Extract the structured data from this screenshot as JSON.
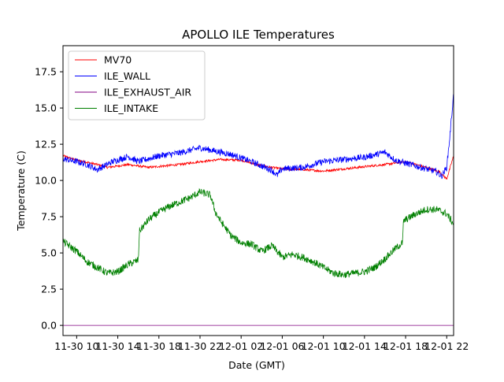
{
  "chart_data": {
    "type": "line",
    "title": "APOLLO ILE Temperatures",
    "xlabel": "Date (GMT)",
    "ylabel": "Temperature (C)",
    "x_unit": "hours since 2021-11-30 10:00 GMT",
    "xlim": [
      -1.33,
      36.67
    ],
    "ylim": [
      -0.7,
      19.3
    ],
    "xticks": [
      {
        "value": 0,
        "label": "11-30 10"
      },
      {
        "value": 4,
        "label": "11-30 14"
      },
      {
        "value": 8,
        "label": "11-30 18"
      },
      {
        "value": 12,
        "label": "11-30 22"
      },
      {
        "value": 16,
        "label": "12-01 02"
      },
      {
        "value": 20,
        "label": "12-01 06"
      },
      {
        "value": 24,
        "label": "12-01 10"
      },
      {
        "value": 28,
        "label": "12-01 14"
      },
      {
        "value": 32,
        "label": "12-01 18"
      },
      {
        "value": 36,
        "label": "12-01 22"
      }
    ],
    "yticks": [
      {
        "value": 0,
        "label": "0.0"
      },
      {
        "value": 2.5,
        "label": "2.5"
      },
      {
        "value": 5,
        "label": "5.0"
      },
      {
        "value": 7.5,
        "label": "7.5"
      },
      {
        "value": 10,
        "label": "10.0"
      },
      {
        "value": 12.5,
        "label": "12.5"
      },
      {
        "value": 15,
        "label": "15.0"
      },
      {
        "value": 17.5,
        "label": "17.5"
      }
    ],
    "legend_position": "top-left",
    "series": [
      {
        "name": "MV70",
        "color": "#ff0000",
        "noise": 0.08,
        "points": [
          [
            -1.33,
            11.7
          ],
          [
            0,
            11.4
          ],
          [
            2,
            11.1
          ],
          [
            3,
            10.9
          ],
          [
            5,
            11.1
          ],
          [
            7,
            10.9
          ],
          [
            10,
            11.1
          ],
          [
            12,
            11.3
          ],
          [
            14,
            11.45
          ],
          [
            16,
            11.4
          ],
          [
            18,
            11.0
          ],
          [
            20,
            10.8
          ],
          [
            22,
            10.75
          ],
          [
            24,
            10.65
          ],
          [
            26,
            10.8
          ],
          [
            28,
            10.95
          ],
          [
            30,
            11.1
          ],
          [
            32,
            11.3
          ],
          [
            34,
            10.9
          ],
          [
            35.3,
            10.6
          ],
          [
            36,
            10.1
          ],
          [
            36.67,
            11.7
          ]
        ]
      },
      {
        "name": "ILE_WALL",
        "color": "#0000ff",
        "noise": 0.22,
        "points": [
          [
            -1.33,
            11.5
          ],
          [
            0,
            11.3
          ],
          [
            1,
            11.1
          ],
          [
            2,
            10.75
          ],
          [
            3.5,
            11.3
          ],
          [
            5,
            11.65
          ],
          [
            6,
            11.3
          ],
          [
            8,
            11.7
          ],
          [
            10,
            11.9
          ],
          [
            12,
            12.25
          ],
          [
            13,
            12.1
          ],
          [
            15,
            11.8
          ],
          [
            17,
            11.3
          ],
          [
            19,
            10.7
          ],
          [
            19.5,
            10.35
          ],
          [
            20,
            10.8
          ],
          [
            22,
            10.9
          ],
          [
            24,
            11.3
          ],
          [
            26,
            11.45
          ],
          [
            28,
            11.6
          ],
          [
            30,
            11.95
          ],
          [
            31,
            11.4
          ],
          [
            33,
            11.0
          ],
          [
            35,
            10.6
          ],
          [
            35.5,
            10.3
          ],
          [
            36,
            10.9
          ],
          [
            36.3,
            13.0
          ],
          [
            36.67,
            16.0
          ]
        ]
      },
      {
        "name": "ILE_EXHAUST_AIR",
        "color": "#800080",
        "noise": 0.0,
        "points": [
          [
            -1.33,
            0.0
          ],
          [
            36.67,
            0.0
          ]
        ]
      },
      {
        "name": "ILE_INTAKE",
        "color": "#008000",
        "noise": 0.25,
        "points": [
          [
            -1.33,
            5.8
          ],
          [
            0,
            5.1
          ],
          [
            1,
            4.4
          ],
          [
            2,
            4.0
          ],
          [
            3,
            3.6
          ],
          [
            4,
            3.7
          ],
          [
            5,
            4.2
          ],
          [
            6,
            4.5
          ],
          [
            6.1,
            6.5
          ],
          [
            7,
            7.3
          ],
          [
            8,
            7.8
          ],
          [
            9,
            8.2
          ],
          [
            10,
            8.5
          ],
          [
            11,
            8.8
          ],
          [
            12,
            9.2
          ],
          [
            13,
            9.0
          ],
          [
            13.5,
            7.8
          ],
          [
            14,
            7.2
          ],
          [
            15,
            6.2
          ],
          [
            16,
            5.7
          ],
          [
            17,
            5.6
          ],
          [
            18,
            5.1
          ],
          [
            19,
            5.5
          ],
          [
            20,
            4.7
          ],
          [
            21,
            4.9
          ],
          [
            22,
            4.7
          ],
          [
            23,
            4.4
          ],
          [
            24,
            4.0
          ],
          [
            25,
            3.6
          ],
          [
            26,
            3.5
          ],
          [
            27,
            3.6
          ],
          [
            28,
            3.7
          ],
          [
            29,
            4.0
          ],
          [
            30,
            4.6
          ],
          [
            31,
            5.3
          ],
          [
            31.7,
            5.7
          ],
          [
            31.8,
            7.2
          ],
          [
            33,
            7.7
          ],
          [
            34,
            8.0
          ],
          [
            35,
            8.0
          ],
          [
            36,
            7.7
          ],
          [
            36.67,
            7.0
          ]
        ]
      }
    ]
  }
}
